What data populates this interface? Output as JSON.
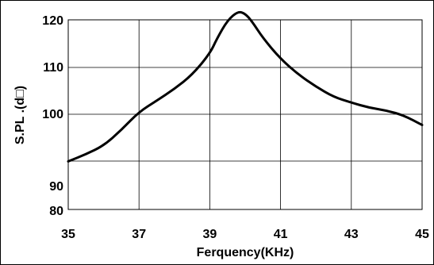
{
  "chart_data": {
    "type": "line",
    "xlabel": "Ferquency(KHz)",
    "ylabel": "S.PL .(d□)",
    "x_ticks": [
      "35",
      "37",
      "39",
      "41",
      "43",
      "45"
    ],
    "y_ticks": [
      {
        "value": 120,
        "label": "120"
      },
      {
        "value": 110,
        "label": "110"
      },
      {
        "value": 100,
        "label": "100"
      },
      {
        "value": 90,
        "label": "90"
      },
      {
        "value": 80,
        "label": "80"
      }
    ],
    "x_gridlines": [
      35,
      37,
      39,
      41,
      43,
      45
    ],
    "y_gridlines": [
      120,
      110,
      100,
      90,
      80
    ],
    "grid": true,
    "xlim": [
      35,
      45
    ],
    "series": [
      {
        "color": "#000000",
        "x": [
          35,
          35.5,
          36,
          36.5,
          37,
          37.5,
          38,
          38.5,
          39,
          39.2,
          39.5,
          39.8,
          40,
          40.2,
          40.5,
          41,
          41.5,
          42,
          42.5,
          43,
          43.5,
          44,
          44.5,
          45
        ],
        "y": [
          93.4,
          94.4,
          95.6,
          97.8,
          100.5,
          102.9,
          105.4,
          108.4,
          112.9,
          116.0,
          119.9,
          121.8,
          121.3,
          119.6,
          116.2,
          111.8,
          108.5,
          105.9,
          103.7,
          102.5,
          101.4,
          100.8,
          99.8,
          98.5
        ]
      }
    ]
  }
}
